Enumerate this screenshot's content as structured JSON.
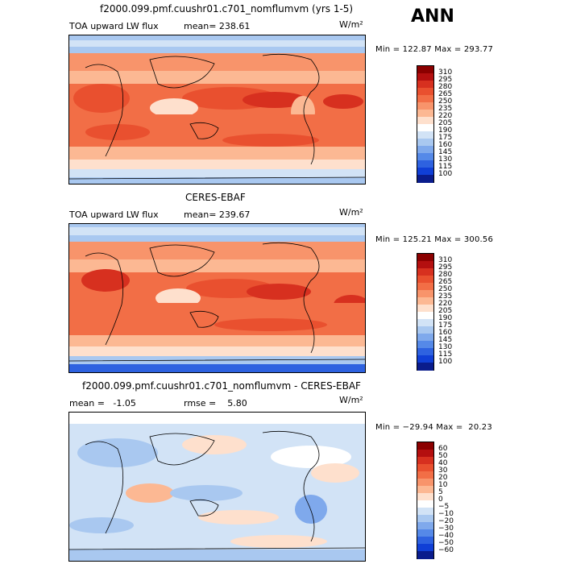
{
  "season": "ANN",
  "panels": [
    {
      "title": "f2000.099.pmf.cuushr01.c701_nomflumvm (yrs 1-5)",
      "left_label": "TOA upward LW flux",
      "stat1": "mean= 238.61",
      "stat2": "",
      "units": "W/m²",
      "minmax": "Min = 122.87 Max = 293.77",
      "levels": [
        "310",
        "295",
        "280",
        "265",
        "250",
        "235",
        "220",
        "205",
        "190",
        "175",
        "160",
        "145",
        "130",
        "115",
        "100"
      ],
      "colors": [
        "#8b0000",
        "#b40f0f",
        "#d7301f",
        "#e9502f",
        "#f26e46",
        "#f8946b",
        "#fcb893",
        "#fee0cd",
        "#ffffff",
        "#d2e3f6",
        "#a9c8f0",
        "#7fa9ec",
        "#5589e8",
        "#2e62e0",
        "#103fd6",
        "#0a1c8c"
      ]
    },
    {
      "title": "CERES-EBAF",
      "left_label": "TOA upward LW flux",
      "stat1": "mean= 239.67",
      "stat2": "",
      "units": "W/m²",
      "minmax": "Min = 125.21 Max = 300.56",
      "levels": [
        "310",
        "295",
        "280",
        "265",
        "250",
        "235",
        "220",
        "205",
        "190",
        "175",
        "160",
        "145",
        "130",
        "115",
        "100"
      ],
      "colors": [
        "#8b0000",
        "#b40f0f",
        "#d7301f",
        "#e9502f",
        "#f26e46",
        "#f8946b",
        "#fcb893",
        "#fee0cd",
        "#ffffff",
        "#d2e3f6",
        "#a9c8f0",
        "#7fa9ec",
        "#5589e8",
        "#2e62e0",
        "#103fd6",
        "#0a1c8c"
      ]
    },
    {
      "title": "f2000.099.pmf.cuushr01.c701_nomflumvm - CERES-EBAF",
      "left_label": "",
      "stat1": "mean =   -1.05",
      "stat2": "rmse =    5.80",
      "units": "W/m²",
      "minmax": "Min = −29.94 Max =  20.23",
      "levels": [
        "60",
        "50",
        "40",
        "30",
        "20",
        "10",
        "5",
        "0",
        "−5",
        "−10",
        "−20",
        "−30",
        "−40",
        "−50",
        "−60"
      ],
      "colors": [
        "#8b0000",
        "#b40f0f",
        "#d7301f",
        "#e9502f",
        "#f26e46",
        "#f8946b",
        "#fcb893",
        "#fee0cd",
        "#ffffff",
        "#d2e3f6",
        "#a9c8f0",
        "#7fa9ec",
        "#5589e8",
        "#2e62e0",
        "#103fd6",
        "#0a1c8c"
      ]
    }
  ]
}
